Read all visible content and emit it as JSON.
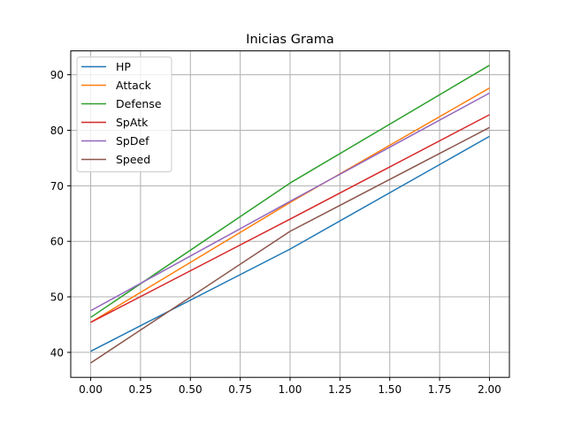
{
  "chart_data": {
    "type": "line",
    "title": "Inicias Grama",
    "xlabel": "",
    "ylabel": "",
    "x": [
      0,
      1,
      2
    ],
    "xlim": [
      -0.1,
      2.1
    ],
    "ylim": [
      35.5,
      94.3
    ],
    "xticks": [
      0,
      0.25,
      0.5,
      0.75,
      1,
      1.25,
      1.5,
      1.75,
      2
    ],
    "xtick_labels": [
      "0.00",
      "0.25",
      "0.50",
      "0.75",
      "1.00",
      "1.25",
      "1.50",
      "1.75",
      "2.00"
    ],
    "yticks": [
      40,
      50,
      60,
      70,
      80,
      90
    ],
    "ytick_labels": [
      "40",
      "50",
      "60",
      "70",
      "80",
      "90"
    ],
    "grid": true,
    "legend_position": "top-left",
    "series": [
      {
        "name": "HP",
        "color": "#1f77b4",
        "values": [
          40.2,
          58.6,
          78.9
        ]
      },
      {
        "name": "Attack",
        "color": "#ff7f0e",
        "values": [
          45.4,
          67.0,
          87.6
        ]
      },
      {
        "name": "Defense",
        "color": "#2ca02c",
        "values": [
          46.3,
          70.5,
          91.7
        ]
      },
      {
        "name": "SpAtk",
        "color": "#d62728",
        "values": [
          45.4,
          64.0,
          82.8
        ]
      },
      {
        "name": "SpDef",
        "color": "#9467bd",
        "values": [
          47.5,
          67.2,
          86.7
        ]
      },
      {
        "name": "Speed",
        "color": "#8c564b",
        "values": [
          38.1,
          61.8,
          80.5
        ]
      }
    ]
  }
}
